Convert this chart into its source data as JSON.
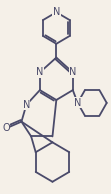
{
  "bg_color": "#f5f0e8",
  "line_color": "#4a4a6a",
  "text_color": "#4a4a6a",
  "line_width": 1.3,
  "font_size": 7.0,
  "fig_w": 1.11,
  "fig_h": 1.94,
  "dpi": 100,
  "xlim": [
    0,
    111
  ],
  "ylim": [
    0,
    194
  ]
}
